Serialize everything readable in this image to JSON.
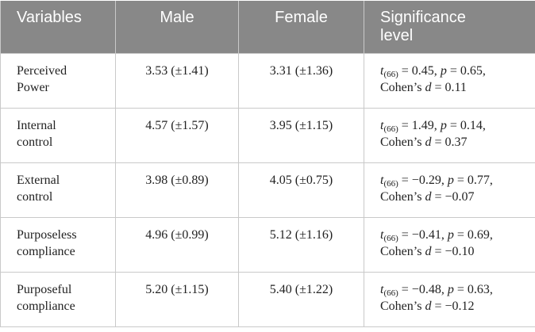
{
  "table": {
    "header": [
      [
        "Variables"
      ],
      [
        "Male"
      ],
      [
        "Female"
      ],
      [
        "Significance",
        "level"
      ]
    ],
    "rows": [
      {
        "variable": [
          "Perceived",
          "Power"
        ],
        "male": "3.53 (±1.41)",
        "female": "3.31 (±1.36)",
        "significance": {
          "t": "t",
          "df": "(66)",
          "t_value": " = 0.45, ",
          "p": "p",
          "p_value": " = 0.65,",
          "cohen": "Cohen’s ",
          "d": "d",
          "d_value": " = 0.11"
        }
      },
      {
        "variable": [
          "Internal",
          "control"
        ],
        "male": "4.57 (±1.57)",
        "female": "3.95 (±1.15)",
        "significance": {
          "t": "t",
          "df": "(66)",
          "t_value": " = 1.49, ",
          "p": "p",
          "p_value": " = 0.14,",
          "cohen": "Cohen’s ",
          "d": "d",
          "d_value": " = 0.37"
        }
      },
      {
        "variable": [
          "External",
          "control"
        ],
        "male": "3.98 (±0.89)",
        "female": "4.05 (±0.75)",
        "significance": {
          "t": "t",
          "df": "(66)",
          "t_value": " = −0.29, ",
          "p": "p",
          "p_value": " = 0.77,",
          "cohen": "Cohen’s ",
          "d": "d",
          "d_value": " = −0.07"
        }
      },
      {
        "variable": [
          "Purposeless",
          "compliance"
        ],
        "male": "4.96 (±0.99)",
        "female": "5.12 (±1.16)",
        "significance": {
          "t": "t",
          "df": "(66)",
          "t_value": " = −0.41, ",
          "p": "p",
          "p_value": " = 0.69,",
          "cohen": "Cohen’s ",
          "d": "d",
          "d_value": " = −0.10"
        }
      },
      {
        "variable": [
          "Purposeful",
          "compliance"
        ],
        "male": "5.20 (±1.15)",
        "female": "5.40 (±1.22)",
        "significance": {
          "t": "t",
          "df": "(66)",
          "t_value": " = −0.48, ",
          "p": "p",
          "p_value": " = 0.63,",
          "cohen": "Cohen’s ",
          "d": "d",
          "d_value": " = −0.12"
        }
      }
    ]
  }
}
